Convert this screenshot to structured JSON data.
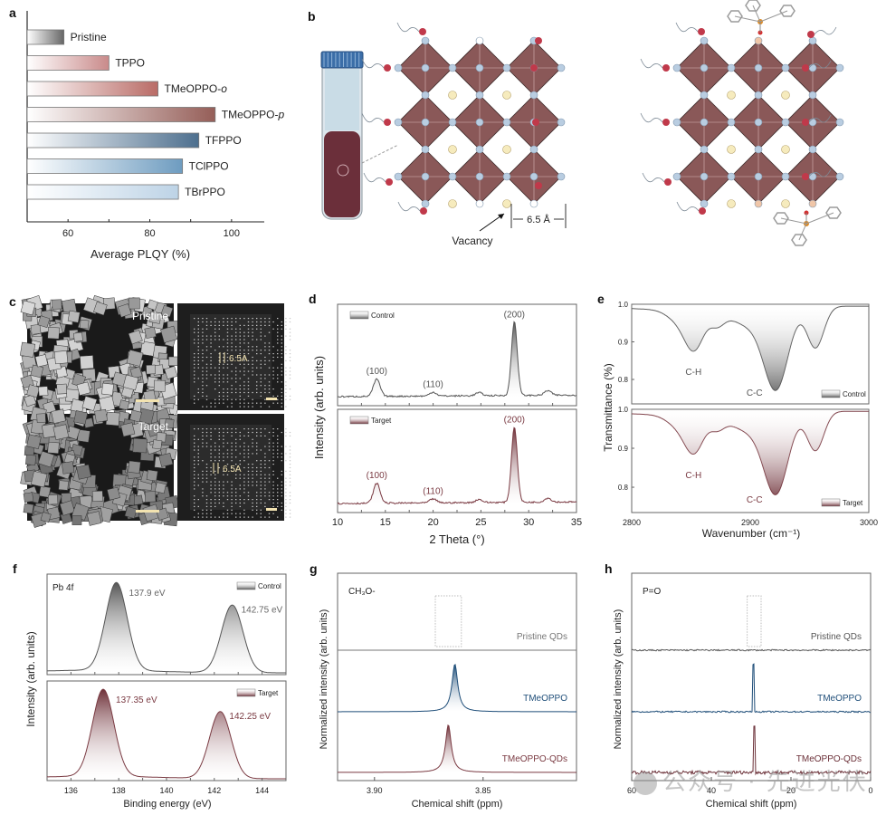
{
  "panel_labels": [
    "a",
    "b",
    "c",
    "d",
    "e",
    "f",
    "g",
    "h"
  ],
  "colors": {
    "gray": "#555555",
    "maroon": "#7a3a42",
    "blue": "#1f4e79",
    "octahedron": "#8a5858",
    "node_blue": "#b9cde1",
    "node_red": "#c0394a",
    "node_cream": "#f6ebbd",
    "node_peach": "#f0c6a8"
  },
  "schematic": {
    "distance_label": "6.5 Å",
    "vacancy_label": "Vacancy"
  },
  "micrographs": {
    "top_label": "Pristine",
    "bottom_label": "Target",
    "spacing_label": "6.5A"
  },
  "watermark": "公众号 · 先进光伏",
  "chart_data": [
    {
      "id": "a",
      "type": "bar",
      "orientation": "horizontal",
      "categories": [
        "Pristine",
        "TPPO",
        "TMeOPPO-o",
        "TMeOPPO-p",
        "TFPPO",
        "TClPPO",
        "TBrPPO"
      ],
      "values": [
        59,
        70,
        82,
        96,
        92,
        88,
        87
      ],
      "bar_colors": [
        "#666666",
        "#c98a8a",
        "#b96b66",
        "#955e58",
        "#4d6f8e",
        "#6e9cc0",
        "#bdd3e6"
      ],
      "xlabel": "Average PLQY (%)",
      "xlim": [
        50,
        108
      ],
      "xticks": [
        60,
        80,
        100
      ],
      "legend": "none",
      "grid": false
    },
    {
      "id": "d",
      "type": "line",
      "xlabel": "2 Theta (°)",
      "ylabel": "Intensity (arb. units)",
      "xlim": [
        10,
        35
      ],
      "xticks": [
        10,
        15,
        20,
        25,
        30,
        35
      ],
      "series": [
        {
          "name": "Control",
          "color": "#555555",
          "peaks": [
            {
              "x": 14.1,
              "h": 0.22
            },
            {
              "x": 20.0,
              "h": 0.05
            },
            {
              "x": 24.8,
              "h": 0.04
            },
            {
              "x": 28.5,
              "h": 0.95
            },
            {
              "x": 32.0,
              "h": 0.06
            }
          ],
          "annotations": [
            {
              "label": "(100)",
              "x": 14.1
            },
            {
              "label": "(110)",
              "x": 20.0
            },
            {
              "label": "(200)",
              "x": 28.5
            }
          ]
        },
        {
          "name": "Target",
          "color": "#7a3a42",
          "peaks": [
            {
              "x": 14.1,
              "h": 0.25
            },
            {
              "x": 20.0,
              "h": 0.05
            },
            {
              "x": 24.8,
              "h": 0.04
            },
            {
              "x": 28.5,
              "h": 0.95
            },
            {
              "x": 32.0,
              "h": 0.05
            }
          ],
          "annotations": [
            {
              "label": "(100)",
              "x": 14.1
            },
            {
              "label": "(110)",
              "x": 20.0
            },
            {
              "label": "(200)",
              "x": 28.5
            }
          ]
        }
      ],
      "legend": "top-left"
    },
    {
      "id": "e",
      "type": "line",
      "xlabel": "Wavenumber (cm⁻¹)",
      "ylabel": "Transmittance (%)",
      "xlim": [
        2800,
        3000
      ],
      "xticks": [
        2800,
        2900,
        3000
      ],
      "ylim": [
        0.74,
        1.0
      ],
      "yticks": [
        0.8,
        0.9,
        1.0
      ],
      "series": [
        {
          "name": "Control",
          "color": "#555555",
          "minima": [
            {
              "x": 2853,
              "y": 0.85
            },
            {
              "x": 2872,
              "y": 0.9
            },
            {
              "x": 2922,
              "y": 0.75
            },
            {
              "x": 2955,
              "y": 0.84
            }
          ],
          "annotations": [
            {
              "label": "C-H",
              "x": 2853
            },
            {
              "label": "C-C",
              "x": 2922
            }
          ]
        },
        {
          "name": "Target",
          "color": "#7a3a42",
          "minima": [
            {
              "x": 2853,
              "y": 0.86
            },
            {
              "x": 2872,
              "y": 0.91
            },
            {
              "x": 2922,
              "y": 0.765
            },
            {
              "x": 2955,
              "y": 0.855
            }
          ],
          "annotations": [
            {
              "label": "C-H",
              "x": 2853
            },
            {
              "label": "C-C",
              "x": 2922
            }
          ]
        }
      ],
      "legend": "bottom-right"
    },
    {
      "id": "f",
      "type": "line",
      "title": "Pb 4f",
      "xlabel": "Binding energy (eV)",
      "ylabel": "Intensity (arb. units)",
      "xlim": [
        135,
        145
      ],
      "xticks": [
        136,
        138,
        140,
        142,
        144
      ],
      "series": [
        {
          "name": "Control",
          "color": "#555555",
          "peaks": [
            {
              "x": 137.9,
              "h": 1.0,
              "label": "137.9 eV"
            },
            {
              "x": 142.75,
              "h": 0.77,
              "label": "142.75 eV"
            }
          ]
        },
        {
          "name": "Target",
          "color": "#7a3a42",
          "peaks": [
            {
              "x": 137.35,
              "h": 1.0,
              "label": "137.35 eV"
            },
            {
              "x": 142.25,
              "h": 0.77,
              "label": "142.25 eV"
            }
          ]
        }
      ],
      "legend": "top-right"
    },
    {
      "id": "g",
      "type": "line",
      "title": "CH₃O-",
      "xlabel": "Chemical shift (ppm)",
      "ylabel": "Normalized intensity (arb. units)",
      "xlim": [
        3.917,
        3.807
      ],
      "xticks": [
        3.9,
        3.85
      ],
      "xtick_labels": [
        "3.90",
        "3.85"
      ],
      "series": [
        {
          "name": "Pristine QDs",
          "color": "#777777",
          "peak_x": null,
          "peak_h": 0
        },
        {
          "name": "TMeOPPO",
          "color": "#1f4e79",
          "peak_x": 3.863,
          "peak_h": 0.85
        },
        {
          "name": "TMeOPPO-QDs",
          "color": "#7a3a42",
          "peak_x": 3.866,
          "peak_h": 0.85
        }
      ],
      "highlight_box_x": [
        3.872,
        3.86
      ],
      "legend": "inline-right"
    },
    {
      "id": "h",
      "type": "line",
      "title": "P=O",
      "xlabel": "Chemical shift (ppm)",
      "ylabel": "Normalized intensity (arb. units)",
      "xlim": [
        60,
        0
      ],
      "xticks": [
        60,
        40,
        20,
        0
      ],
      "series": [
        {
          "name": "Pristine QDs",
          "color": "#555555",
          "peak_x": null,
          "peak_h": 0
        },
        {
          "name": "TMeOPPO",
          "color": "#1f4e79",
          "peak_x": 29.5,
          "peak_h": 0.85
        },
        {
          "name": "TMeOPPO-QDs",
          "color": "#6b3038",
          "peak_x": 29.1,
          "peak_h": 0.85
        }
      ],
      "highlight_box_x": [
        31,
        27.5
      ],
      "legend": "inline-right"
    }
  ]
}
